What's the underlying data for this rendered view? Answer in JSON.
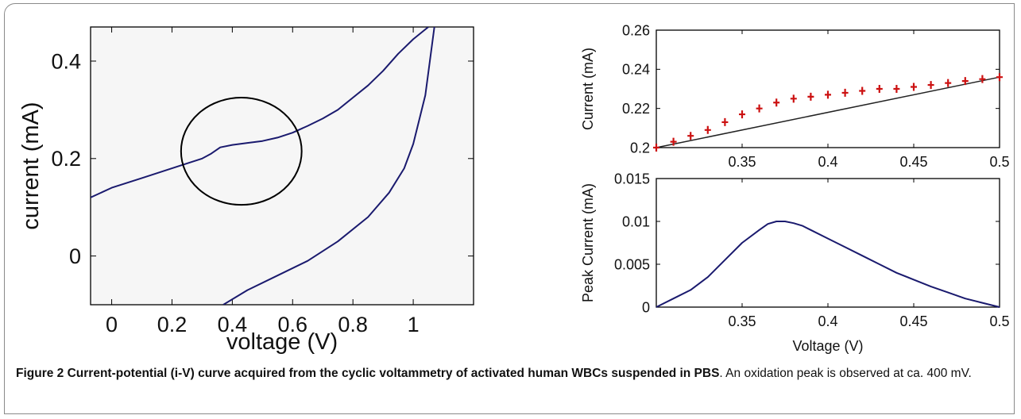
{
  "figure": {
    "caption_label": "Figure 2",
    "caption_title": "Current-potential (i-V) curve acquired from the cyclic voltammetry of activated human WBCs suspended in PBS",
    "caption_text": ". An oxidation peak is observed at ca. 400 mV."
  },
  "colors": {
    "curve": "#1a1a6e",
    "marker": "#cc1111",
    "axes": "#000000",
    "plot_bg": "#f6f6f6"
  },
  "chart_data": [
    {
      "type": "line",
      "xlabel": "voltage (V)",
      "ylabel": "current (mA)",
      "xlim": [
        -0.07,
        1.2
      ],
      "ylim": [
        -0.1,
        0.47
      ],
      "xticks": [
        0,
        0.2,
        0.4,
        0.6,
        0.8,
        1
      ],
      "xtick_labels": [
        "0",
        "0.2",
        "0.4",
        "0.6",
        "0.8",
        "1"
      ],
      "yticks": [
        0,
        0.2,
        0.4
      ],
      "ytick_labels": [
        "0",
        "0.2",
        "0.4"
      ],
      "series": [
        {
          "x": [
            -0.07,
            0.0,
            0.1,
            0.2,
            0.25,
            0.3,
            0.33,
            0.36,
            0.4,
            0.45,
            0.5,
            0.55,
            0.6,
            0.65,
            0.7,
            0.75,
            0.8,
            0.85,
            0.9,
            0.95,
            1.0,
            1.03,
            1.05
          ],
          "y": [
            0.12,
            0.14,
            0.16,
            0.18,
            0.19,
            0.2,
            0.21,
            0.223,
            0.228,
            0.232,
            0.236,
            0.243,
            0.253,
            0.267,
            0.282,
            0.3,
            0.325,
            0.35,
            0.38,
            0.415,
            0.445,
            0.46,
            0.47
          ]
        },
        {
          "x": [
            0.37,
            0.45,
            0.55,
            0.65,
            0.75,
            0.85,
            0.92,
            0.97,
            1.0,
            1.02,
            1.04,
            1.055,
            1.07
          ],
          "y": [
            -0.1,
            -0.07,
            -0.04,
            -0.01,
            0.03,
            0.08,
            0.13,
            0.18,
            0.23,
            0.28,
            0.33,
            0.4,
            0.47
          ]
        }
      ],
      "annotations": [
        {
          "type": "ellipse",
          "center": [
            0.43,
            0.215
          ],
          "radii": [
            0.2,
            0.11
          ]
        }
      ],
      "grid": false
    },
    {
      "type": "scatter",
      "xlabel": "",
      "ylabel": "Current (mA)",
      "xlim": [
        0.3,
        0.5
      ],
      "ylim": [
        0.2,
        0.26
      ],
      "xticks": [
        0.35,
        0.4,
        0.45,
        0.5
      ],
      "xtick_labels": [
        "0.35",
        "0.4",
        "0.45",
        "0.5"
      ],
      "yticks": [
        0.2,
        0.22,
        0.24,
        0.26
      ],
      "ytick_labels": [
        "0.2",
        "0.22",
        "0.24",
        "0.26"
      ],
      "line": {
        "x": [
          0.3,
          0.5
        ],
        "y": [
          0.2,
          0.236
        ]
      },
      "points": {
        "x": [
          0.3,
          0.31,
          0.32,
          0.33,
          0.34,
          0.35,
          0.36,
          0.37,
          0.38,
          0.39,
          0.4,
          0.41,
          0.42,
          0.43,
          0.44,
          0.45,
          0.46,
          0.47,
          0.48,
          0.49,
          0.5
        ],
        "y": [
          0.2,
          0.203,
          0.206,
          0.209,
          0.213,
          0.217,
          0.22,
          0.223,
          0.225,
          0.226,
          0.227,
          0.228,
          0.229,
          0.23,
          0.23,
          0.231,
          0.232,
          0.233,
          0.234,
          0.235,
          0.236
        ]
      },
      "grid": false
    },
    {
      "type": "line",
      "xlabel": "Voltage (V)",
      "ylabel": "Peak Current (mA)",
      "xlim": [
        0.3,
        0.5
      ],
      "ylim": [
        0,
        0.015
      ],
      "xticks": [
        0.35,
        0.4,
        0.45,
        0.5
      ],
      "xtick_labels": [
        "0.35",
        "0.4",
        "0.45",
        "0.5"
      ],
      "yticks": [
        0,
        0.005,
        0.01,
        0.015
      ],
      "ytick_labels": [
        "0",
        "0.005",
        "0.01",
        "0.015"
      ],
      "series": [
        {
          "x": [
            0.3,
            0.31,
            0.32,
            0.33,
            0.34,
            0.35,
            0.36,
            0.365,
            0.37,
            0.375,
            0.38,
            0.385,
            0.39,
            0.4,
            0.41,
            0.42,
            0.43,
            0.44,
            0.45,
            0.46,
            0.47,
            0.48,
            0.49,
            0.5
          ],
          "y": [
            0,
            0.001,
            0.002,
            0.0035,
            0.0055,
            0.0075,
            0.009,
            0.0097,
            0.01,
            0.01,
            0.0098,
            0.0095,
            0.009,
            0.008,
            0.007,
            0.006,
            0.005,
            0.004,
            0.0032,
            0.0024,
            0.0017,
            0.001,
            0.0005,
            0
          ]
        }
      ],
      "grid": false
    }
  ]
}
